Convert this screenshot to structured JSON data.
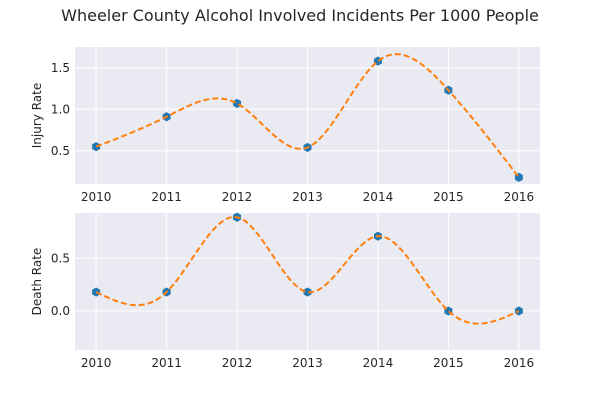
{
  "title": "Wheeler County Alcohol Involved Incidents Per 1000 People",
  "colors": {
    "background": "#eaeaf2",
    "grid": "#ffffff",
    "marker": "#1f77b4",
    "curve": "#ff7f0e",
    "text": "#262626"
  },
  "chart_data": [
    {
      "type": "line",
      "title": "",
      "xlabel": "",
      "ylabel": "Injury Rate",
      "x": [
        2010,
        2011,
        2012,
        2013,
        2014,
        2015,
        2016
      ],
      "series": [
        {
          "values": [
            0.55,
            0.91,
            1.07,
            0.54,
            1.58,
            1.23,
            0.18
          ]
        }
      ],
      "xlim": [
        2009.7,
        2016.3
      ],
      "ylim": [
        0.1,
        1.75
      ],
      "yticks": [
        0.5,
        1.0,
        1.5
      ],
      "ytick_labels": [
        "0.5",
        "1.0",
        "1.5"
      ],
      "xticks": [
        2010,
        2011,
        2012,
        2013,
        2014,
        2015,
        2016
      ],
      "xtick_labels": [
        "2010",
        "2011",
        "2012",
        "2013",
        "2014",
        "2015",
        "2016"
      ],
      "grid": true,
      "curve_style": "dashed smooth interpolation"
    },
    {
      "type": "line",
      "title": "",
      "xlabel": "",
      "ylabel": "Death Rate",
      "x": [
        2010,
        2011,
        2012,
        2013,
        2014,
        2015,
        2016
      ],
      "series": [
        {
          "values": [
            0.18,
            0.18,
            0.89,
            0.18,
            0.71,
            0.0,
            0.0
          ]
        }
      ],
      "xlim": [
        2009.7,
        2016.3
      ],
      "ylim": [
        -0.37,
        0.93
      ],
      "yticks": [
        0.0,
        0.5
      ],
      "ytick_labels": [
        "0.0",
        "0.5"
      ],
      "xticks": [
        2010,
        2011,
        2012,
        2013,
        2014,
        2015,
        2016
      ],
      "xtick_labels": [
        "2010",
        "2011",
        "2012",
        "2013",
        "2014",
        "2015",
        "2016"
      ],
      "grid": true,
      "curve_style": "dashed smooth interpolation"
    }
  ]
}
